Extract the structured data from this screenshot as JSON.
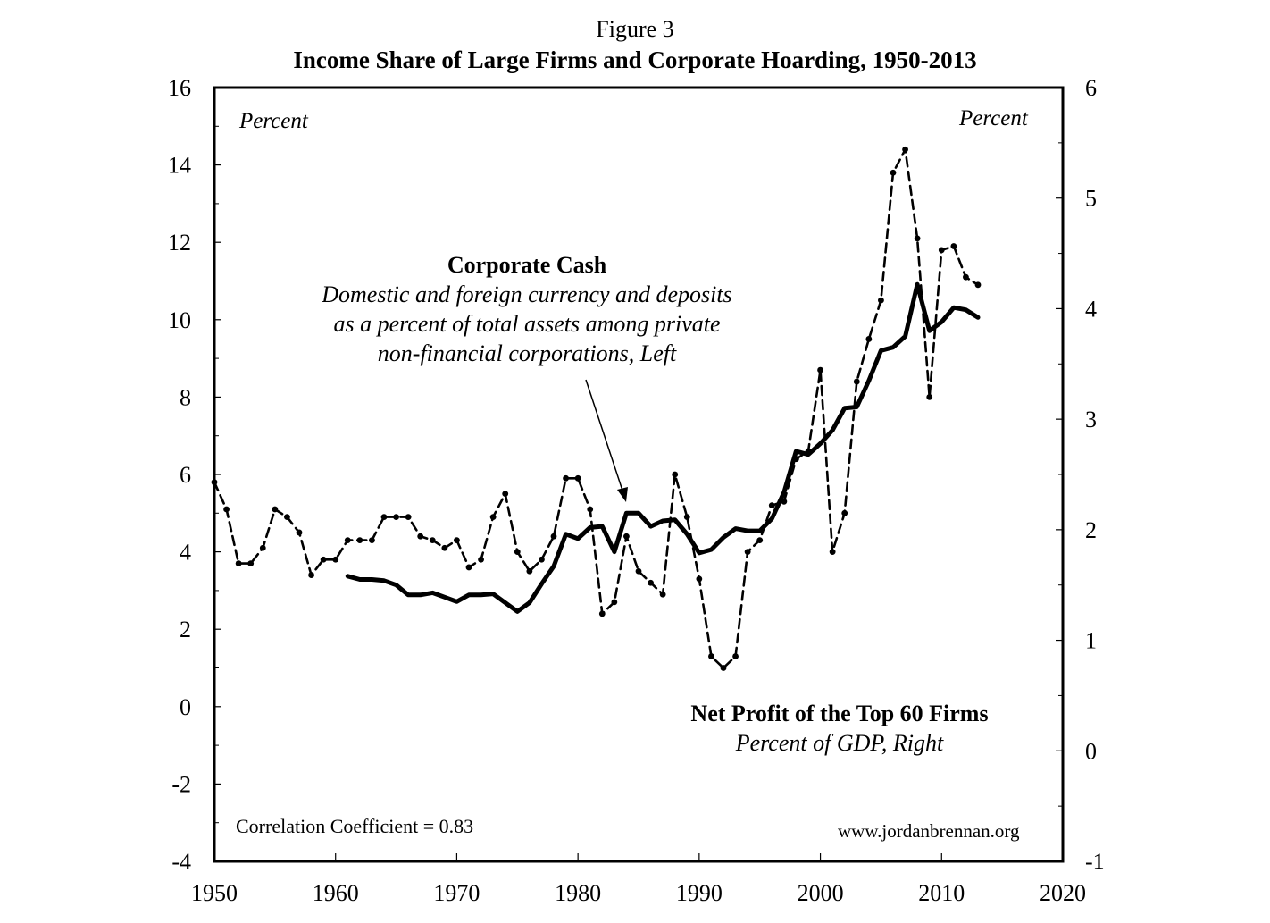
{
  "figure_label": "Figure 3",
  "title": "Income Share of Large Firms and Corporate Hoarding, 1950-2013",
  "left_unit": "Percent",
  "right_unit": "Percent",
  "annotation_cash": {
    "heading": "Corporate Cash",
    "line1": "Domestic and foreign currency and deposits",
    "line2": "as a percent of total assets among private",
    "line3": "non-financial corporations, Left"
  },
  "annotation_profit": {
    "heading": "Net Profit of the Top 60 Firms",
    "line1": "Percent of GDP, Right"
  },
  "correlation": "Correlation Coefficient = 0.83",
  "source": "www.jordanbrennan.org",
  "chart_data": {
    "type": "line",
    "x_range": [
      1950,
      2020
    ],
    "x_ticks": [
      1950,
      1960,
      1970,
      1980,
      1990,
      2000,
      2010,
      2020
    ],
    "y_left_range": [
      -4,
      16
    ],
    "y_left_ticks": [
      -4,
      -2,
      0,
      2,
      4,
      6,
      8,
      10,
      12,
      14,
      16
    ],
    "y_right_range": [
      -1,
      6
    ],
    "y_right_ticks": [
      -1,
      0,
      1,
      2,
      3,
      4,
      5,
      6
    ],
    "series": [
      {
        "name": "Corporate Cash",
        "axis": "left",
        "style": "dashed",
        "x": [
          1950,
          1951,
          1952,
          1953,
          1954,
          1955,
          1956,
          1957,
          1958,
          1959,
          1960,
          1961,
          1962,
          1963,
          1964,
          1965,
          1966,
          1967,
          1968,
          1969,
          1970,
          1971,
          1972,
          1973,
          1974,
          1975,
          1976,
          1977,
          1978,
          1979,
          1980,
          1981,
          1982,
          1983,
          1984,
          1985,
          1986,
          1987,
          1988,
          1989,
          1990,
          1991,
          1992,
          1993,
          1994,
          1995,
          1996,
          1997,
          1998,
          1999,
          2000,
          2001,
          2002,
          2003,
          2004,
          2005,
          2006,
          2007,
          2008,
          2009,
          2010,
          2011,
          2012,
          2013
        ],
        "values": [
          5.8,
          5.1,
          3.7,
          3.7,
          4.1,
          5.1,
          4.9,
          4.5,
          3.4,
          3.8,
          3.8,
          4.3,
          4.3,
          4.3,
          4.9,
          4.9,
          4.9,
          4.4,
          4.3,
          4.1,
          4.3,
          3.6,
          3.8,
          4.9,
          5.5,
          4.0,
          3.5,
          3.8,
          4.4,
          5.9,
          5.9,
          5.1,
          2.4,
          2.7,
          4.4,
          3.5,
          3.2,
          2.9,
          6.0,
          4.9,
          3.3,
          1.3,
          1.0,
          1.3,
          4.0,
          4.3,
          5.2,
          5.3,
          6.4,
          6.6,
          8.7,
          4.0,
          5.0,
          8.4,
          9.5,
          10.5,
          13.8,
          14.4,
          12.1,
          8.0,
          11.8,
          11.9,
          11.1,
          10.9
        ]
      },
      {
        "name": "Net Profit of the Top 60 Firms",
        "axis": "right",
        "style": "solid",
        "x": [
          1961,
          1962,
          1963,
          1964,
          1965,
          1966,
          1967,
          1968,
          1969,
          1970,
          1971,
          1972,
          1973,
          1974,
          1975,
          1976,
          1977,
          1978,
          1979,
          1980,
          1981,
          1982,
          1983,
          1984,
          1985,
          1986,
          1987,
          1988,
          1989,
          1990,
          1991,
          1992,
          1993,
          1994,
          1995,
          1996,
          1997,
          1998,
          1999,
          2000,
          2001,
          2002,
          2003,
          2004,
          2005,
          2006,
          2007,
          2008,
          2009,
          2010,
          2011,
          2012,
          2013
        ],
        "values": [
          1.58,
          1.55,
          1.55,
          1.54,
          1.5,
          1.41,
          1.41,
          1.43,
          1.39,
          1.35,
          1.41,
          1.41,
          1.42,
          1.34,
          1.26,
          1.34,
          1.51,
          1.67,
          1.96,
          1.92,
          2.02,
          2.03,
          1.8,
          2.15,
          2.15,
          2.03,
          2.08,
          2.09,
          1.96,
          1.79,
          1.82,
          1.93,
          2.01,
          1.99,
          1.99,
          2.1,
          2.34,
          2.71,
          2.68,
          2.78,
          2.9,
          3.1,
          3.11,
          3.35,
          3.62,
          3.65,
          3.75,
          4.22,
          3.8,
          3.88,
          4.01,
          3.99,
          3.92
        ]
      }
    ]
  }
}
